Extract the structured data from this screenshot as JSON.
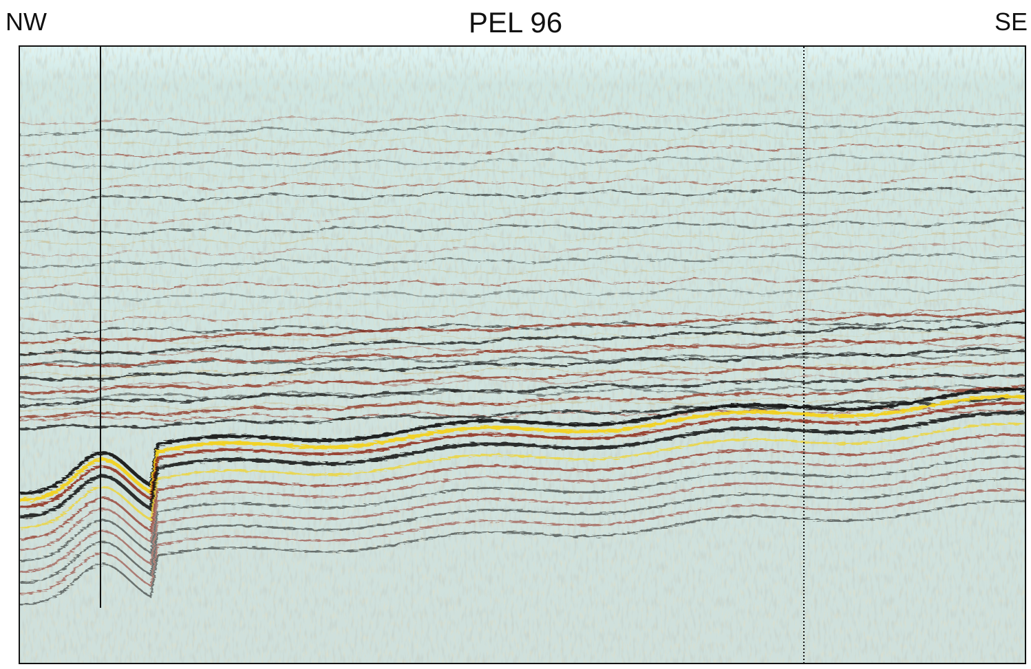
{
  "labels": {
    "left_direction": "NW",
    "right_direction": "SE",
    "title": "PEL 96"
  },
  "colors": {
    "background": "#ffffff",
    "seismic_base": "#cfe3e0",
    "noise_tan": "#c8b98a",
    "reflector_red": "#8e2b1b",
    "reflector_black": "#111111",
    "bright_amplitude_yellow": "#f2d21c",
    "frame": "#111111"
  },
  "image": {
    "description_type": "seismic-section",
    "markers": [
      "solid-vertical-line",
      "dotted-vertical-line"
    ]
  }
}
